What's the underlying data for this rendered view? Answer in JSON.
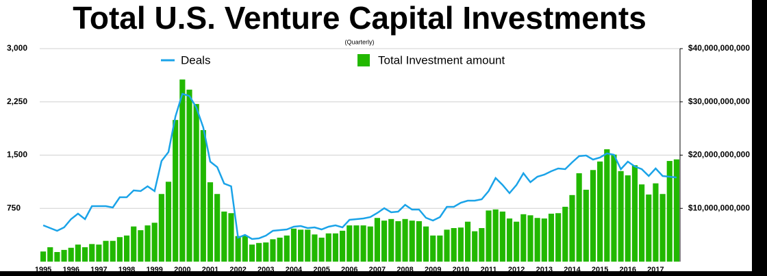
{
  "chart_data": {
    "type": "bar-line",
    "title": "Total U.S. Venture Capital Investments",
    "subtitle": "(Quarterly)",
    "categories": [
      "1995",
      null,
      null,
      null,
      "1996",
      null,
      null,
      null,
      "1997",
      null,
      null,
      null,
      "1998",
      null,
      null,
      null,
      "1999",
      null,
      null,
      null,
      "2000",
      null,
      null,
      null,
      "2001",
      null,
      null,
      null,
      "2002",
      null,
      null,
      null,
      "2003",
      null,
      null,
      null,
      "2004",
      null,
      null,
      null,
      "2005",
      null,
      null,
      null,
      "2006",
      null,
      null,
      null,
      "2007",
      null,
      null,
      null,
      "2008",
      null,
      null,
      null,
      "2009",
      null,
      null,
      null,
      "2010",
      null,
      null,
      null,
      "2011",
      null,
      null,
      null,
      "2012",
      null,
      null,
      null,
      "2013",
      null,
      null,
      null,
      "2014",
      null,
      null,
      null,
      "2015",
      null,
      null,
      null,
      "2016",
      null,
      null,
      null,
      "2017",
      null,
      null,
      null
    ],
    "series": [
      {
        "name": "Total Investment amount",
        "color": "#22b800",
        "axis": "y2",
        "kind": "bar",
        "values": [
          1900000000.0,
          2700000000.0,
          1800000000.0,
          2200000000.0,
          2600000000.0,
          3200000000.0,
          2700000000.0,
          3300000000.0,
          3200000000.0,
          3900000000.0,
          3900000000.0,
          4600000000.0,
          4900000000.0,
          6600000000.0,
          5900000000.0,
          6800000000.0,
          7300000000.0,
          12700000000.0,
          15000000000.0,
          26600000000.0,
          34200000000.0,
          32300000000.0,
          29600000000.0,
          24700000000.0,
          14900000000.0,
          12700000000.0,
          9400000000.0,
          9100000000.0,
          4800000000.0,
          4900000000.0,
          3200000000.0,
          3500000000.0,
          3600000000.0,
          4200000000.0,
          4500000000.0,
          4900000000.0,
          6200000000.0,
          6000000000.0,
          6000000000.0,
          5100000000.0,
          4500000000.0,
          5300000000.0,
          5300000000.0,
          5800000000.0,
          6800000000.0,
          6800000000.0,
          6800000000.0,
          6600000000.0,
          8200000000.0,
          7700000000.0,
          8000000000.0,
          7600000000.0,
          8000000000.0,
          7700000000.0,
          7600000000.0,
          6600000000.0,
          4900000000.0,
          4900000000.0,
          6000000000.0,
          6300000000.0,
          6400000000.0,
          7500000000.0,
          5700000000.0,
          6300000000.0,
          9600000000.0,
          9800000000.0,
          9400000000.0,
          8100000000.0,
          7500000000.0,
          8900000000.0,
          8700000000.0,
          8200000000.0,
          8100000000.0,
          9000000000.0,
          9100000000.0,
          10300000000.0,
          12500000000.0,
          16600000000.0,
          13500000000.0,
          17200000000.0,
          18800000000.0,
          21100000000.0,
          20100000000.0,
          17000000000.0,
          16200000000.0,
          18100000000.0,
          14500000000.0,
          12600000000.0,
          14700000000.0,
          12700000000.0,
          18900000000.0,
          19200000000.0
        ]
      },
      {
        "name": "Deals",
        "color": "#1aa3e8",
        "axis": "y",
        "kind": "line",
        "values": [
          511,
          473,
          434,
          482,
          598,
          675,
          598,
          781,
          781,
          781,
          762,
          907,
          907,
          1003,
          994,
          1061,
          994,
          1418,
          1543,
          2045,
          2363,
          2334,
          2170,
          1890,
          1408,
          1331,
          1100,
          1061,
          338,
          376,
          318,
          328,
          367,
          434,
          444,
          453,
          492,
          502,
          473,
          482,
          453,
          492,
          511,
          482,
          588,
          598,
          608,
          627,
          685,
          752,
          695,
          704,
          800,
          733,
          733,
          617,
          579,
          627,
          772,
          772,
          830,
          859,
          859,
          878,
          994,
          1177,
          1080,
          965,
          1080,
          1244,
          1119,
          1196,
          1225,
          1273,
          1312,
          1302,
          1399,
          1486,
          1495,
          1437,
          1466,
          1524,
          1505,
          1302,
          1408,
          1341,
          1302,
          1206,
          1312,
          1206,
          1196,
          1186
        ]
      }
    ],
    "ylim": [
      0,
      3000
    ],
    "yticks": [
      750,
      {
        "value": 1500,
        "label": "1,500"
      },
      {
        "value": 2250,
        "label": "2,250"
      },
      {
        "value": 3000,
        "label": "3,000"
      }
    ],
    "y2lim": [
      0,
      40000000000
    ],
    "y2ticks": [
      {
        "value": 10000000000,
        "label": "$10,000,000,000"
      },
      {
        "value": 20000000000,
        "label": "$20,000,000,000"
      },
      {
        "value": 30000000000,
        "label": "$30,000,000,000"
      },
      {
        "value": 40000000000,
        "label": "$40,000,000,000"
      }
    ],
    "grid": true
  }
}
